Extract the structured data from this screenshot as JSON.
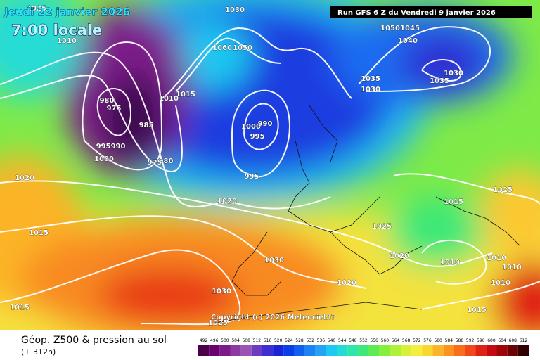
{
  "header": {
    "date": "Jeudi 22 janvier 2026",
    "time": "7:00 locale",
    "run": "Run GFS 6 Z du Vendredi 9 janvier 2026"
  },
  "isobar_labels": [
    "1025",
    "1010",
    "1030",
    "1060",
    "1050",
    "1050",
    "1045",
    "1040",
    "1035",
    "1030",
    "1030",
    "1035",
    "1015",
    "1010",
    "980",
    "975",
    "985",
    "995",
    "990",
    "1000",
    "975",
    "980",
    "1000",
    "990",
    "995",
    "995",
    "1020",
    "1020",
    "1015",
    "1025",
    "1025",
    "1015",
    "1020",
    "1030",
    "1010",
    "1010",
    "1010",
    "1020",
    "1010",
    "1030",
    "1015",
    "1015",
    "1025"
  ],
  "copyright": "Copyright (c) 2026 Meteociel.fr",
  "footer": {
    "title": "Géop. Z500 & pression au sol",
    "lead": "(+ 312h)"
  },
  "scale": {
    "values": [
      492,
      496,
      500,
      504,
      508,
      512,
      516,
      520,
      524,
      528,
      532,
      536,
      540,
      544,
      548,
      552,
      556,
      560,
      564,
      568,
      572,
      576,
      580,
      584,
      588,
      592,
      596,
      600,
      604,
      608,
      612
    ],
    "colors": [
      "#4b004b",
      "#6b0070",
      "#7d1a8a",
      "#8c3aa0",
      "#9a52b5",
      "#6e3cc2",
      "#3f2fd0",
      "#1a23d8",
      "#0b3ce8",
      "#1060f0",
      "#1c84f2",
      "#22a4f2",
      "#1ec8f0",
      "#25dcd4",
      "#2ee6a8",
      "#3ee878",
      "#5eea50",
      "#86ee3c",
      "#b0f03a",
      "#d8f03a",
      "#f4ee3c",
      "#fcd630",
      "#fcb428",
      "#fc9220",
      "#f86e1c",
      "#f04818",
      "#e02014",
      "#c40a10",
      "#9c0608",
      "#6a0404",
      "#300000"
    ]
  }
}
